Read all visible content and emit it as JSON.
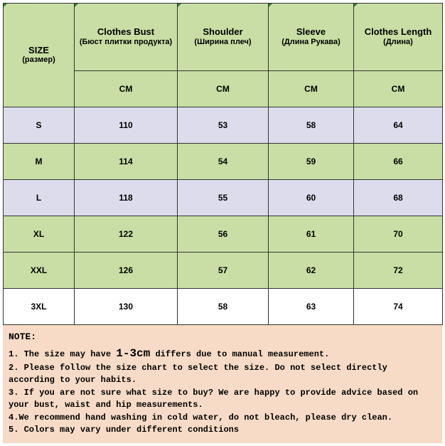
{
  "table": {
    "background_header": "#c8dea4",
    "background_pale": "#dcdcec",
    "background_white": "#ffffff",
    "border_color": "#333333",
    "triangle_color": "#2f7d2f",
    "columns": [
      {
        "title": "SIZE",
        "subtitle": "(размер)",
        "unit": "",
        "width": 100
      },
      {
        "title": "Clothes Bust",
        "subtitle": "(Бюст плитки продукта)",
        "unit": "CM",
        "width": 145
      },
      {
        "title": "Shoulder",
        "subtitle": "(Ширина плеч)",
        "unit": "CM",
        "width": 128
      },
      {
        "title": "Sleeve",
        "subtitle": "(Длина Рукава)",
        "unit": "CM",
        "width": 120
      },
      {
        "title": "Clothes Length",
        "subtitle": "(Длина)",
        "unit": "CM",
        "width": 125
      }
    ],
    "rows": [
      {
        "size": "S",
        "bust": "110",
        "shoulder": "53",
        "sleeve": "58",
        "length": "64",
        "band": "pale"
      },
      {
        "size": "M",
        "bust": "114",
        "shoulder": "54",
        "sleeve": "59",
        "length": "66",
        "band": "green"
      },
      {
        "size": "L",
        "bust": "118",
        "shoulder": "55",
        "sleeve": "60",
        "length": "68",
        "band": "pale"
      },
      {
        "size": "XL",
        "bust": "122",
        "shoulder": "56",
        "sleeve": "61",
        "length": "70",
        "band": "green"
      },
      {
        "size": "XXL",
        "bust": "126",
        "shoulder": "57",
        "sleeve": "62",
        "length": "72",
        "band": "green"
      },
      {
        "size": "3XL",
        "bust": "130",
        "shoulder": "58",
        "sleeve": "63",
        "length": "74",
        "band": "white"
      }
    ]
  },
  "note": {
    "background": "#f7dbc6",
    "heading": "NOTE:",
    "emphasis": "1-3cm",
    "line1_a": "1. The size may have ",
    "line1_b": " differs due to manual measurement.",
    "line2": "2. Please follow the size chart to select the size. Do not select directly according to your habits.",
    "line3": "3. If you are not sure what size to buy? We are happy to provide advice based on your bust, waist and hip measurements.",
    "line4": "4.We recommend hand washing in cold water, do not bleach, please dry clean.",
    "line5": "5. Colors may vary under different conditions"
  }
}
